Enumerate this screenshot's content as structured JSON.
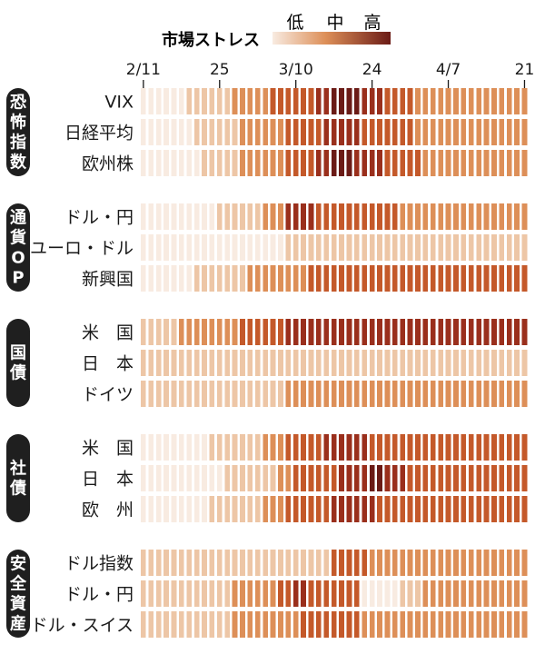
{
  "chart_data": {
    "type": "heatmap",
    "legend": {
      "title": "市場ストレス",
      "levels": [
        "低",
        "中",
        "高"
      ],
      "colors": [
        "#f8ebe1",
        "#edc6a6",
        "#dd8f58",
        "#c4592a",
        "#9a2f1c",
        "#6b1b16"
      ]
    },
    "x_ticks": [
      {
        "label": "2/11",
        "col": 0
      },
      {
        "label": "25",
        "col": 10
      },
      {
        "label": "3/10",
        "col": 20
      },
      {
        "label": "24",
        "col": 30
      },
      {
        "label": "4/7",
        "col": 40
      },
      {
        "label": "21",
        "col": 50
      }
    ],
    "n_days": 51,
    "groups": [
      {
        "label": "恐怖指数",
        "rows": [
          {
            "label": "VIX",
            "values": [
              0,
              0,
              0,
              0,
              0,
              0,
              1,
              1,
              1,
              1,
              1,
              1,
              2,
              2,
              2,
              2,
              2,
              3,
              3,
              3,
              3,
              3,
              3,
              4,
              4,
              5,
              5,
              5,
              5,
              4,
              4,
              4,
              3,
              3,
              3,
              3,
              2,
              2,
              2,
              2,
              2,
              2,
              2,
              2,
              2,
              2,
              2,
              2,
              2,
              2,
              2
            ]
          },
          {
            "label": "日経平均",
            "values": [
              0,
              0,
              0,
              0,
              0,
              0,
              0,
              1,
              1,
              1,
              1,
              1,
              1,
              2,
              2,
              2,
              2,
              2,
              2,
              3,
              3,
              3,
              3,
              3,
              4,
              4,
              4,
              4,
              4,
              3,
              3,
              3,
              3,
              3,
              3,
              3,
              2,
              2,
              2,
              2,
              2,
              2,
              2,
              2,
              2,
              2,
              2,
              2,
              2,
              2,
              2
            ]
          },
          {
            "label": "欧州株",
            "values": [
              0,
              0,
              0,
              0,
              0,
              0,
              0,
              0,
              1,
              1,
              1,
              1,
              1,
              2,
              2,
              2,
              2,
              2,
              2,
              3,
              3,
              3,
              3,
              4,
              4,
              5,
              5,
              5,
              4,
              4,
              4,
              4,
              3,
              3,
              3,
              3,
              3,
              2,
              2,
              2,
              2,
              2,
              2,
              2,
              2,
              2,
              2,
              2,
              2,
              2,
              2
            ]
          }
        ]
      },
      {
        "label": "通貨OP",
        "rows": [
          {
            "label": "ドル・円",
            "values": [
              0,
              0,
              0,
              0,
              0,
              0,
              0,
              0,
              0,
              0,
              1,
              1,
              1,
              1,
              1,
              1,
              2,
              2,
              2,
              4,
              4,
              4,
              4,
              3,
              3,
              3,
              3,
              3,
              3,
              3,
              3,
              3,
              3,
              3,
              2,
              2,
              2,
              2,
              2,
              2,
              2,
              2,
              2,
              2,
              2,
              2,
              2,
              2,
              2,
              2,
              2
            ]
          },
          {
            "label": "ユーロ・ドル",
            "values": [
              0,
              0,
              0,
              0,
              0,
              0,
              0,
              0,
              0,
              0,
              0,
              0,
              0,
              0,
              0,
              0,
              0,
              0,
              0,
              1,
              1,
              1,
              1,
              1,
              1,
              1,
              1,
              1,
              1,
              1,
              1,
              1,
              1,
              1,
              1,
              1,
              1,
              1,
              1,
              1,
              1,
              1,
              1,
              1,
              1,
              1,
              1,
              1,
              1,
              1,
              1
            ]
          },
          {
            "label": "新興国",
            "values": [
              0,
              0,
              0,
              0,
              0,
              0,
              0,
              1,
              1,
              1,
              1,
              1,
              1,
              1,
              2,
              2,
              2,
              2,
              2,
              2,
              2,
              2,
              3,
              3,
              3,
              3,
              3,
              3,
              3,
              3,
              3,
              3,
              3,
              3,
              3,
              3,
              3,
              3,
              3,
              3,
              3,
              3,
              3,
              3,
              3,
              3,
              3,
              3,
              3,
              3,
              3
            ]
          }
        ]
      },
      {
        "label": "国債",
        "rows": [
          {
            "label": "米　国",
            "values": [
              1,
              1,
              1,
              1,
              1,
              2,
              2,
              2,
              2,
              2,
              2,
              2,
              2,
              3,
              3,
              3,
              3,
              3,
              3,
              4,
              4,
              4,
              4,
              4,
              4,
              4,
              4,
              4,
              4,
              4,
              4,
              4,
              4,
              4,
              4,
              4,
              4,
              4,
              4,
              4,
              4,
              4,
              4,
              4,
              4,
              4,
              4,
              4,
              4,
              4,
              4
            ]
          },
          {
            "label": "日　本",
            "values": [
              1,
              1,
              1,
              1,
              1,
              1,
              1,
              1,
              1,
              1,
              1,
              1,
              1,
              1,
              1,
              1,
              1,
              1,
              1,
              1,
              1,
              1,
              1,
              1,
              1,
              1,
              1,
              1,
              1,
              1,
              1,
              1,
              1,
              1,
              1,
              1,
              1,
              1,
              1,
              1,
              1,
              1,
              1,
              1,
              1,
              1,
              1,
              1,
              1,
              1,
              1
            ]
          },
          {
            "label": "ドイツ",
            "values": [
              1,
              1,
              1,
              1,
              1,
              1,
              1,
              1,
              1,
              1,
              1,
              1,
              1,
              1,
              1,
              1,
              1,
              1,
              1,
              2,
              2,
              2,
              2,
              2,
              2,
              2,
              2,
              2,
              2,
              2,
              2,
              2,
              2,
              2,
              2,
              2,
              2,
              2,
              2,
              2,
              2,
              2,
              2,
              2,
              2,
              2,
              2,
              2,
              2,
              2,
              2
            ]
          }
        ]
      },
      {
        "label": "社債",
        "rows": [
          {
            "label": "米　国",
            "values": [
              0,
              0,
              0,
              0,
              0,
              0,
              0,
              0,
              0,
              1,
              1,
              1,
              1,
              1,
              1,
              1,
              2,
              2,
              2,
              3,
              3,
              3,
              3,
              3,
              4,
              4,
              4,
              4,
              4,
              4,
              3,
              3,
              3,
              3,
              3,
              3,
              3,
              3,
              3,
              3,
              3,
              3,
              3,
              3,
              3,
              3,
              3,
              3,
              3,
              3,
              3
            ]
          },
          {
            "label": "日　本",
            "values": [
              0,
              0,
              0,
              0,
              0,
              0,
              0,
              0,
              0,
              0,
              0,
              1,
              1,
              1,
              1,
              1,
              1,
              1,
              2,
              2,
              3,
              3,
              3,
              3,
              3,
              3,
              4,
              4,
              4,
              4,
              5,
              5,
              4,
              4,
              4,
              3,
              3,
              3,
              3,
              3,
              3,
              3,
              3,
              3,
              3,
              3,
              3,
              3,
              3,
              3,
              3
            ]
          },
          {
            "label": "欧　州",
            "values": [
              0,
              0,
              0,
              0,
              0,
              0,
              0,
              0,
              0,
              1,
              1,
              1,
              1,
              1,
              1,
              1,
              2,
              2,
              2,
              3,
              3,
              3,
              3,
              3,
              3,
              4,
              4,
              4,
              4,
              4,
              4,
              3,
              3,
              3,
              3,
              3,
              3,
              3,
              3,
              3,
              3,
              3,
              3,
              3,
              3,
              3,
              3,
              3,
              3,
              3,
              3
            ]
          }
        ]
      },
      {
        "label": "安全資産",
        "rows": [
          {
            "label": "ドル指数",
            "values": [
              1,
              1,
              1,
              1,
              1,
              1,
              1,
              1,
              1,
              1,
              1,
              1,
              1,
              1,
              1,
              1,
              1,
              1,
              1,
              1,
              1,
              1,
              1,
              1,
              1,
              3,
              3,
              3,
              3,
              3,
              2,
              2,
              2,
              2,
              2,
              2,
              2,
              2,
              2,
              2,
              2,
              2,
              2,
              2,
              2,
              2,
              2,
              2,
              2,
              2,
              2
            ]
          },
          {
            "label": "ドル・円",
            "values": [
              1,
              1,
              1,
              1,
              1,
              1,
              1,
              1,
              1,
              1,
              1,
              1,
              2,
              2,
              2,
              2,
              2,
              2,
              3,
              3,
              4,
              4,
              3,
              3,
              3,
              3,
              3,
              3,
              3,
              0,
              0,
              0,
              0,
              0,
              1,
              1,
              1,
              2,
              2,
              2,
              2,
              2,
              2,
              2,
              2,
              2,
              2,
              2,
              2,
              2,
              2
            ]
          },
          {
            "label": "ドル・スイス",
            "values": [
              1,
              1,
              1,
              1,
              1,
              1,
              1,
              1,
              1,
              1,
              1,
              1,
              2,
              2,
              2,
              2,
              2,
              2,
              2,
              2,
              2,
              3,
              3,
              3,
              3,
              3,
              3,
              3,
              3,
              2,
              2,
              2,
              2,
              2,
              2,
              2,
              2,
              2,
              2,
              2,
              2,
              2,
              2,
              2,
              2,
              2,
              2,
              2,
              2,
              2,
              2
            ]
          }
        ]
      }
    ]
  }
}
